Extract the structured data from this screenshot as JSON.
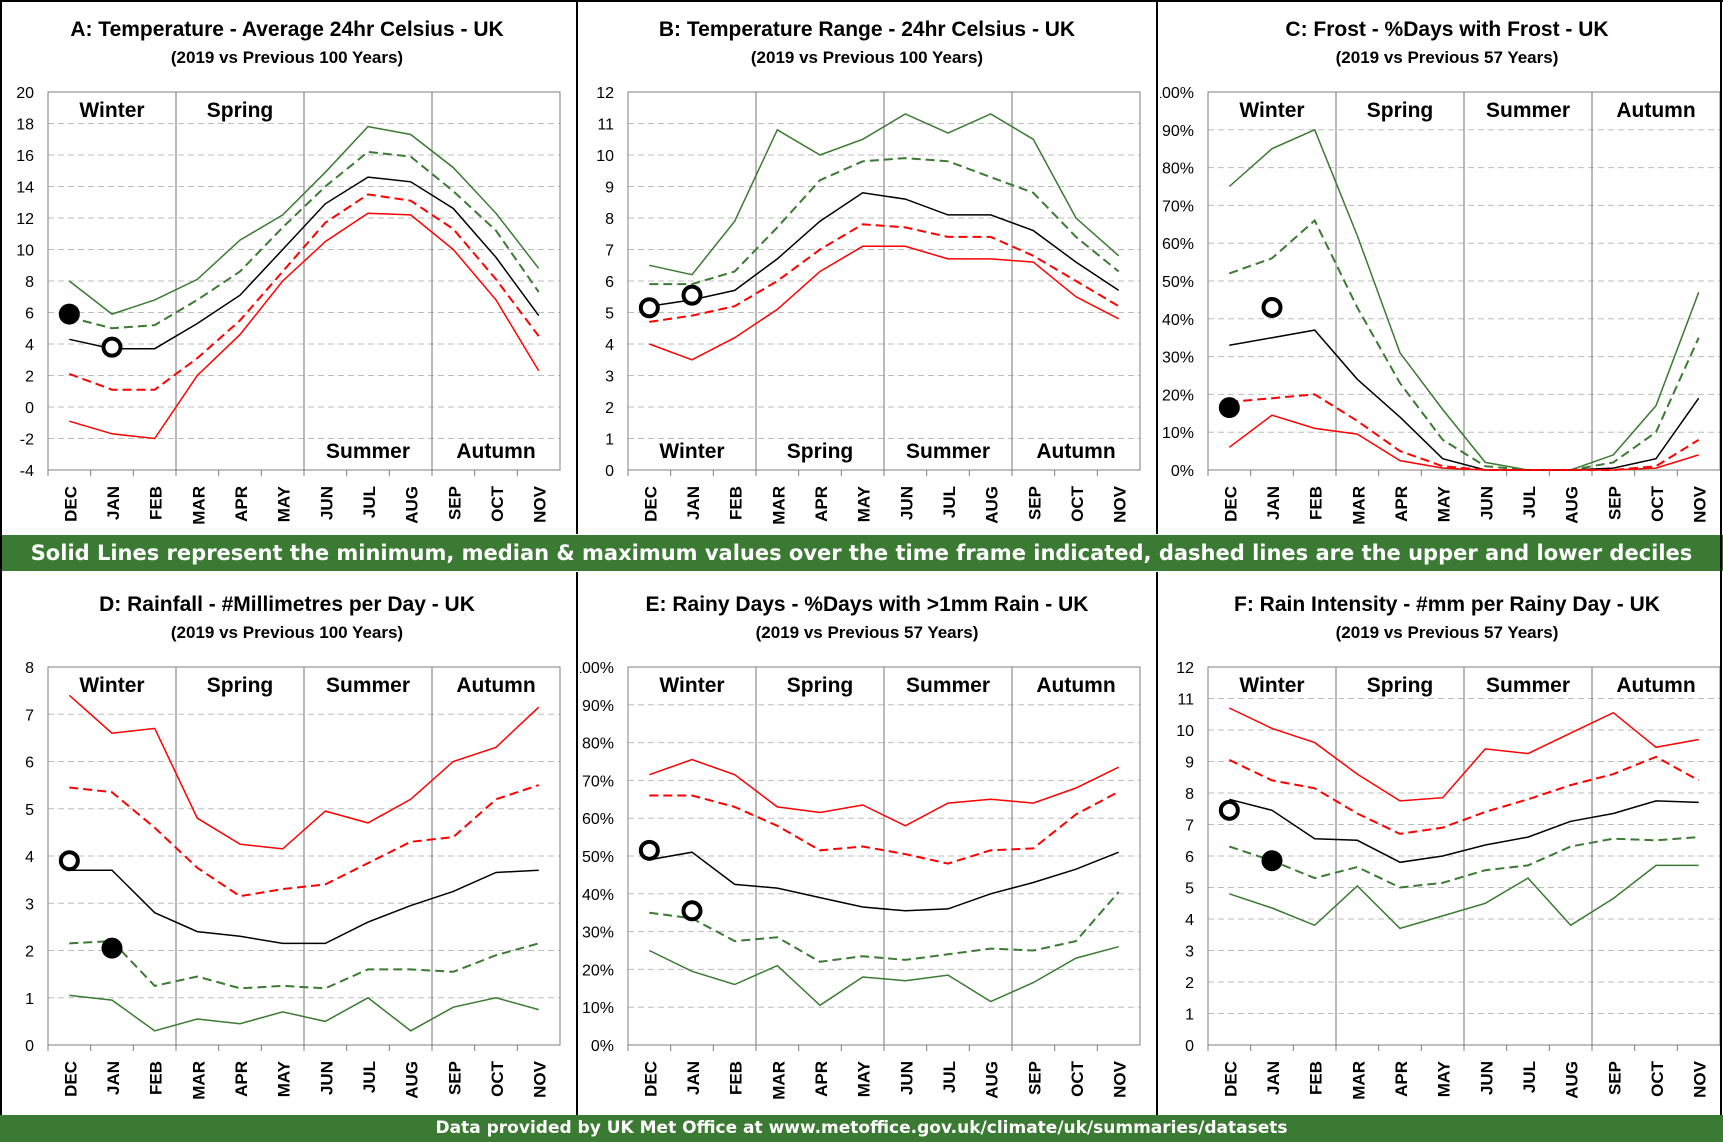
{
  "months": [
    "DEC",
    "JAN",
    "FEB",
    "MAR",
    "APR",
    "MAY",
    "JUN",
    "JUL",
    "AUG",
    "SEP",
    "OCT",
    "NOV"
  ],
  "seasons": [
    "Winter",
    "Spring",
    "Summer",
    "Autumn"
  ],
  "colors": {
    "max": "#ff0000",
    "median": "#000000",
    "min": "#3b7a32",
    "banner": "#3b7a32"
  },
  "banners": {
    "middle": "Solid Lines represent the minimum, median & maximum values over the time frame indicated, dashed lines are the upper and lower deciles",
    "bottom": "Data provided by UK Met Office at www.metoffice.gov.uk/climate/uk/summaries/datasets"
  },
  "chart_data": [
    {
      "type": "line",
      "title": "A: Temperature - Average 24hr Celsius - UK",
      "subtitle": "(2019 vs Previous 100 Years)",
      "ylim": [
        -4,
        20
      ],
      "ystep": 2,
      "percent": false,
      "season_labels_position": "top-winter-spring, bottom-summer-autumn",
      "x": [
        "DEC",
        "JAN",
        "FEB",
        "MAR",
        "APR",
        "MAY",
        "JUN",
        "JUL",
        "AUG",
        "SEP",
        "OCT",
        "NOV"
      ],
      "series": [
        {
          "role": "upper",
          "style": "solid",
          "color": "#3b7a32",
          "values": [
            8.0,
            5.9,
            6.8,
            8.1,
            10.6,
            12.2,
            14.9,
            17.8,
            17.3,
            15.2,
            12.3,
            8.8
          ]
        },
        {
          "role": "upper-decile",
          "style": "dashed",
          "color": "#3b7a32",
          "values": [
            5.7,
            5.0,
            5.2,
            6.8,
            8.6,
            11.4,
            14.0,
            16.2,
            15.9,
            13.7,
            11.2,
            7.3
          ]
        },
        {
          "role": "median",
          "style": "solid",
          "color": "#000000",
          "values": [
            4.3,
            3.7,
            3.7,
            5.3,
            7.1,
            10.0,
            12.9,
            14.6,
            14.3,
            12.6,
            9.5,
            5.8
          ]
        },
        {
          "role": "lower-decile",
          "style": "dashed",
          "color": "#ff0000",
          "values": [
            2.1,
            1.1,
            1.1,
            3.1,
            5.5,
            8.6,
            11.7,
            13.5,
            13.1,
            11.3,
            8.1,
            4.5
          ]
        },
        {
          "role": "lower",
          "style": "solid",
          "color": "#ff0000",
          "values": [
            -0.9,
            -1.7,
            -2.0,
            2.0,
            4.6,
            8.0,
            10.5,
            12.3,
            12.2,
            10.0,
            6.8,
            2.3
          ]
        }
      ],
      "points_2019": [
        {
          "month": "DEC",
          "value": 5.9,
          "filled": true
        },
        {
          "month": "JAN",
          "value": 3.8,
          "filled": false
        }
      ]
    },
    {
      "type": "line",
      "title": "B: Temperature Range - 24hr Celsius - UK",
      "subtitle": "(2019 vs Previous 100 Years)",
      "ylim": [
        0,
        12
      ],
      "ystep": 1,
      "percent": false,
      "season_labels_position": "bottom",
      "x": [
        "DEC",
        "JAN",
        "FEB",
        "MAR",
        "APR",
        "MAY",
        "JUN",
        "JUL",
        "AUG",
        "SEP",
        "OCT",
        "NOV"
      ],
      "series": [
        {
          "role": "upper",
          "style": "solid",
          "color": "#3b7a32",
          "values": [
            6.5,
            6.2,
            7.9,
            10.8,
            10.0,
            10.5,
            11.3,
            10.7,
            11.3,
            10.5,
            8.0,
            6.8
          ]
        },
        {
          "role": "upper-decile",
          "style": "dashed",
          "color": "#3b7a32",
          "values": [
            5.9,
            5.9,
            6.3,
            7.7,
            9.2,
            9.8,
            9.9,
            9.8,
            9.3,
            8.8,
            7.4,
            6.3
          ]
        },
        {
          "role": "median",
          "style": "solid",
          "color": "#000000",
          "values": [
            5.2,
            5.4,
            5.7,
            6.7,
            7.9,
            8.8,
            8.6,
            8.1,
            8.1,
            7.6,
            6.6,
            5.7
          ]
        },
        {
          "role": "lower-decile",
          "style": "dashed",
          "color": "#ff0000",
          "values": [
            4.7,
            4.9,
            5.2,
            6.0,
            7.0,
            7.8,
            7.7,
            7.4,
            7.4,
            6.8,
            6.0,
            5.2
          ]
        },
        {
          "role": "lower",
          "style": "solid",
          "color": "#ff0000",
          "values": [
            4.0,
            3.5,
            4.2,
            5.1,
            6.3,
            7.1,
            7.1,
            6.7,
            6.7,
            6.6,
            5.5,
            4.8
          ]
        }
      ],
      "points_2019": [
        {
          "month": "DEC",
          "value": 5.15,
          "filled": false
        },
        {
          "month": "JAN",
          "value": 5.55,
          "filled": false
        }
      ]
    },
    {
      "type": "line",
      "title": "C: Frost - %Days with Frost - UK",
      "subtitle": "(2019 vs Previous 57 Years)",
      "ylim": [
        0,
        100
      ],
      "ystep": 10,
      "percent": true,
      "season_labels_position": "top",
      "x": [
        "DEC",
        "JAN",
        "FEB",
        "MAR",
        "APR",
        "MAY",
        "JUN",
        "JUL",
        "AUG",
        "SEP",
        "OCT",
        "NOV"
      ],
      "series": [
        {
          "role": "upper",
          "style": "solid",
          "color": "#3b7a32",
          "values": [
            75,
            85,
            90,
            62,
            31,
            16,
            2,
            0,
            0,
            4,
            17,
            47
          ]
        },
        {
          "role": "upper-decile",
          "style": "dashed",
          "color": "#3b7a32",
          "values": [
            52,
            56,
            66,
            43,
            23,
            8,
            1,
            0,
            0,
            2,
            10,
            35
          ]
        },
        {
          "role": "median",
          "style": "solid",
          "color": "#000000",
          "values": [
            33,
            35,
            37,
            24,
            14,
            3,
            0,
            0,
            0,
            0.5,
            3,
            19
          ]
        },
        {
          "role": "lower-decile",
          "style": "dashed",
          "color": "#ff0000",
          "values": [
            18,
            19,
            20,
            13,
            5,
            1,
            0,
            0,
            0,
            0,
            1,
            8
          ]
        },
        {
          "role": "lower",
          "style": "solid",
          "color": "#ff0000",
          "values": [
            6,
            14.5,
            11,
            9.5,
            2.5,
            0.5,
            0,
            0,
            0,
            0,
            0.5,
            4
          ]
        }
      ],
      "points_2019": [
        {
          "month": "DEC",
          "value": 16.5,
          "filled": true
        },
        {
          "month": "JAN",
          "value": 43,
          "filled": false
        }
      ]
    },
    {
      "type": "line",
      "title": "D: Rainfall - #Millimetres per Day - UK",
      "subtitle": "(2019 vs Previous 100 Years)",
      "ylim": [
        0,
        8
      ],
      "ystep": 1,
      "percent": false,
      "season_labels_position": "top",
      "x": [
        "DEC",
        "JAN",
        "FEB",
        "MAR",
        "APR",
        "MAY",
        "JUN",
        "JUL",
        "AUG",
        "SEP",
        "OCT",
        "NOV"
      ],
      "series": [
        {
          "role": "upper",
          "style": "solid",
          "color": "#ff0000",
          "values": [
            7.4,
            6.6,
            6.7,
            4.8,
            4.25,
            4.15,
            4.95,
            4.7,
            5.2,
            6.0,
            6.3,
            7.15
          ]
        },
        {
          "role": "upper-decile",
          "style": "dashed",
          "color": "#ff0000",
          "values": [
            5.45,
            5.35,
            4.6,
            3.75,
            3.15,
            3.3,
            3.4,
            3.85,
            4.3,
            4.4,
            5.2,
            5.5
          ]
        },
        {
          "role": "median",
          "style": "solid",
          "color": "#000000",
          "values": [
            3.7,
            3.7,
            2.8,
            2.4,
            2.3,
            2.15,
            2.15,
            2.6,
            2.95,
            3.25,
            3.65,
            3.7
          ]
        },
        {
          "role": "lower-decile",
          "style": "dashed",
          "color": "#3b7a32",
          "values": [
            2.15,
            2.2,
            1.25,
            1.45,
            1.2,
            1.25,
            1.2,
            1.6,
            1.6,
            1.55,
            1.9,
            2.15
          ]
        },
        {
          "role": "lower",
          "style": "solid",
          "color": "#3b7a32",
          "values": [
            1.05,
            0.95,
            0.3,
            0.55,
            0.45,
            0.7,
            0.5,
            1.0,
            0.3,
            0.8,
            1.0,
            0.75
          ]
        }
      ],
      "points_2019": [
        {
          "month": "DEC",
          "value": 3.9,
          "filled": false
        },
        {
          "month": "JAN",
          "value": 2.05,
          "filled": true
        }
      ]
    },
    {
      "type": "line",
      "title": "E: Rainy Days - %Days with >1mm Rain - UK",
      "subtitle": "(2019 vs Previous 57 Years)",
      "ylim": [
        0,
        100
      ],
      "ystep": 10,
      "percent": true,
      "season_labels_position": "top",
      "x": [
        "DEC",
        "JAN",
        "FEB",
        "MAR",
        "APR",
        "MAY",
        "JUN",
        "JUL",
        "AUG",
        "SEP",
        "OCT",
        "NOV"
      ],
      "series": [
        {
          "role": "upper",
          "style": "solid",
          "color": "#ff0000",
          "values": [
            71.5,
            75.5,
            71.5,
            63,
            61.5,
            63.5,
            58,
            64,
            65,
            64,
            68,
            73.5
          ]
        },
        {
          "role": "upper-decile",
          "style": "dashed",
          "color": "#ff0000",
          "values": [
            66,
            66,
            63,
            58,
            51.5,
            52.5,
            50.5,
            48,
            51.5,
            52,
            61,
            67
          ]
        },
        {
          "role": "median",
          "style": "solid",
          "color": "#000000",
          "values": [
            49,
            51,
            42.5,
            41.5,
            39,
            36.5,
            35.5,
            36,
            40,
            43,
            46.5,
            51
          ]
        },
        {
          "role": "lower-decile",
          "style": "dashed",
          "color": "#3b7a32",
          "values": [
            35,
            33.5,
            27.5,
            28.5,
            22,
            23.5,
            22.5,
            24,
            25.5,
            25,
            27.5,
            40.5
          ]
        },
        {
          "role": "lower",
          "style": "solid",
          "color": "#3b7a32",
          "values": [
            25,
            19.5,
            16,
            21,
            10.5,
            18,
            17,
            18.5,
            11.5,
            16.5,
            23,
            26
          ]
        }
      ],
      "points_2019": [
        {
          "month": "DEC",
          "value": 51.5,
          "filled": false
        },
        {
          "month": "JAN",
          "value": 35.5,
          "filled": false
        }
      ]
    },
    {
      "type": "line",
      "title": "F: Rain Intensity - #mm per Rainy Day - UK",
      "subtitle": "(2019 vs Previous 57 Years)",
      "ylim": [
        0,
        12
      ],
      "ystep": 1,
      "percent": false,
      "season_labels_position": "top",
      "x": [
        "DEC",
        "JAN",
        "FEB",
        "MAR",
        "APR",
        "MAY",
        "JUN",
        "JUL",
        "AUG",
        "SEP",
        "OCT",
        "NOV"
      ],
      "series": [
        {
          "role": "upper",
          "style": "solid",
          "color": "#ff0000",
          "values": [
            10.7,
            10.05,
            9.6,
            8.6,
            7.75,
            7.85,
            9.4,
            9.25,
            9.9,
            10.55,
            9.45,
            9.7
          ]
        },
        {
          "role": "upper-decile",
          "style": "dashed",
          "color": "#ff0000",
          "values": [
            9.05,
            8.4,
            8.15,
            7.35,
            6.7,
            6.9,
            7.4,
            7.8,
            8.25,
            8.6,
            9.15,
            8.4
          ]
        },
        {
          "role": "median",
          "style": "solid",
          "color": "#000000",
          "values": [
            7.8,
            7.45,
            6.55,
            6.5,
            5.8,
            6.0,
            6.35,
            6.6,
            7.1,
            7.35,
            7.75,
            7.7
          ]
        },
        {
          "role": "lower-decile",
          "style": "dashed",
          "color": "#3b7a32",
          "values": [
            6.3,
            5.85,
            5.3,
            5.65,
            5.0,
            5.15,
            5.55,
            5.7,
            6.3,
            6.55,
            6.5,
            6.6
          ]
        },
        {
          "role": "lower",
          "style": "solid",
          "color": "#3b7a32",
          "values": [
            4.8,
            4.35,
            3.8,
            5.05,
            3.7,
            4.1,
            4.5,
            5.3,
            3.8,
            4.65,
            5.7,
            5.7
          ]
        }
      ],
      "points_2019": [
        {
          "month": "DEC",
          "value": 7.45,
          "filled": false
        },
        {
          "month": "JAN",
          "value": 5.85,
          "filled": true
        }
      ]
    }
  ]
}
